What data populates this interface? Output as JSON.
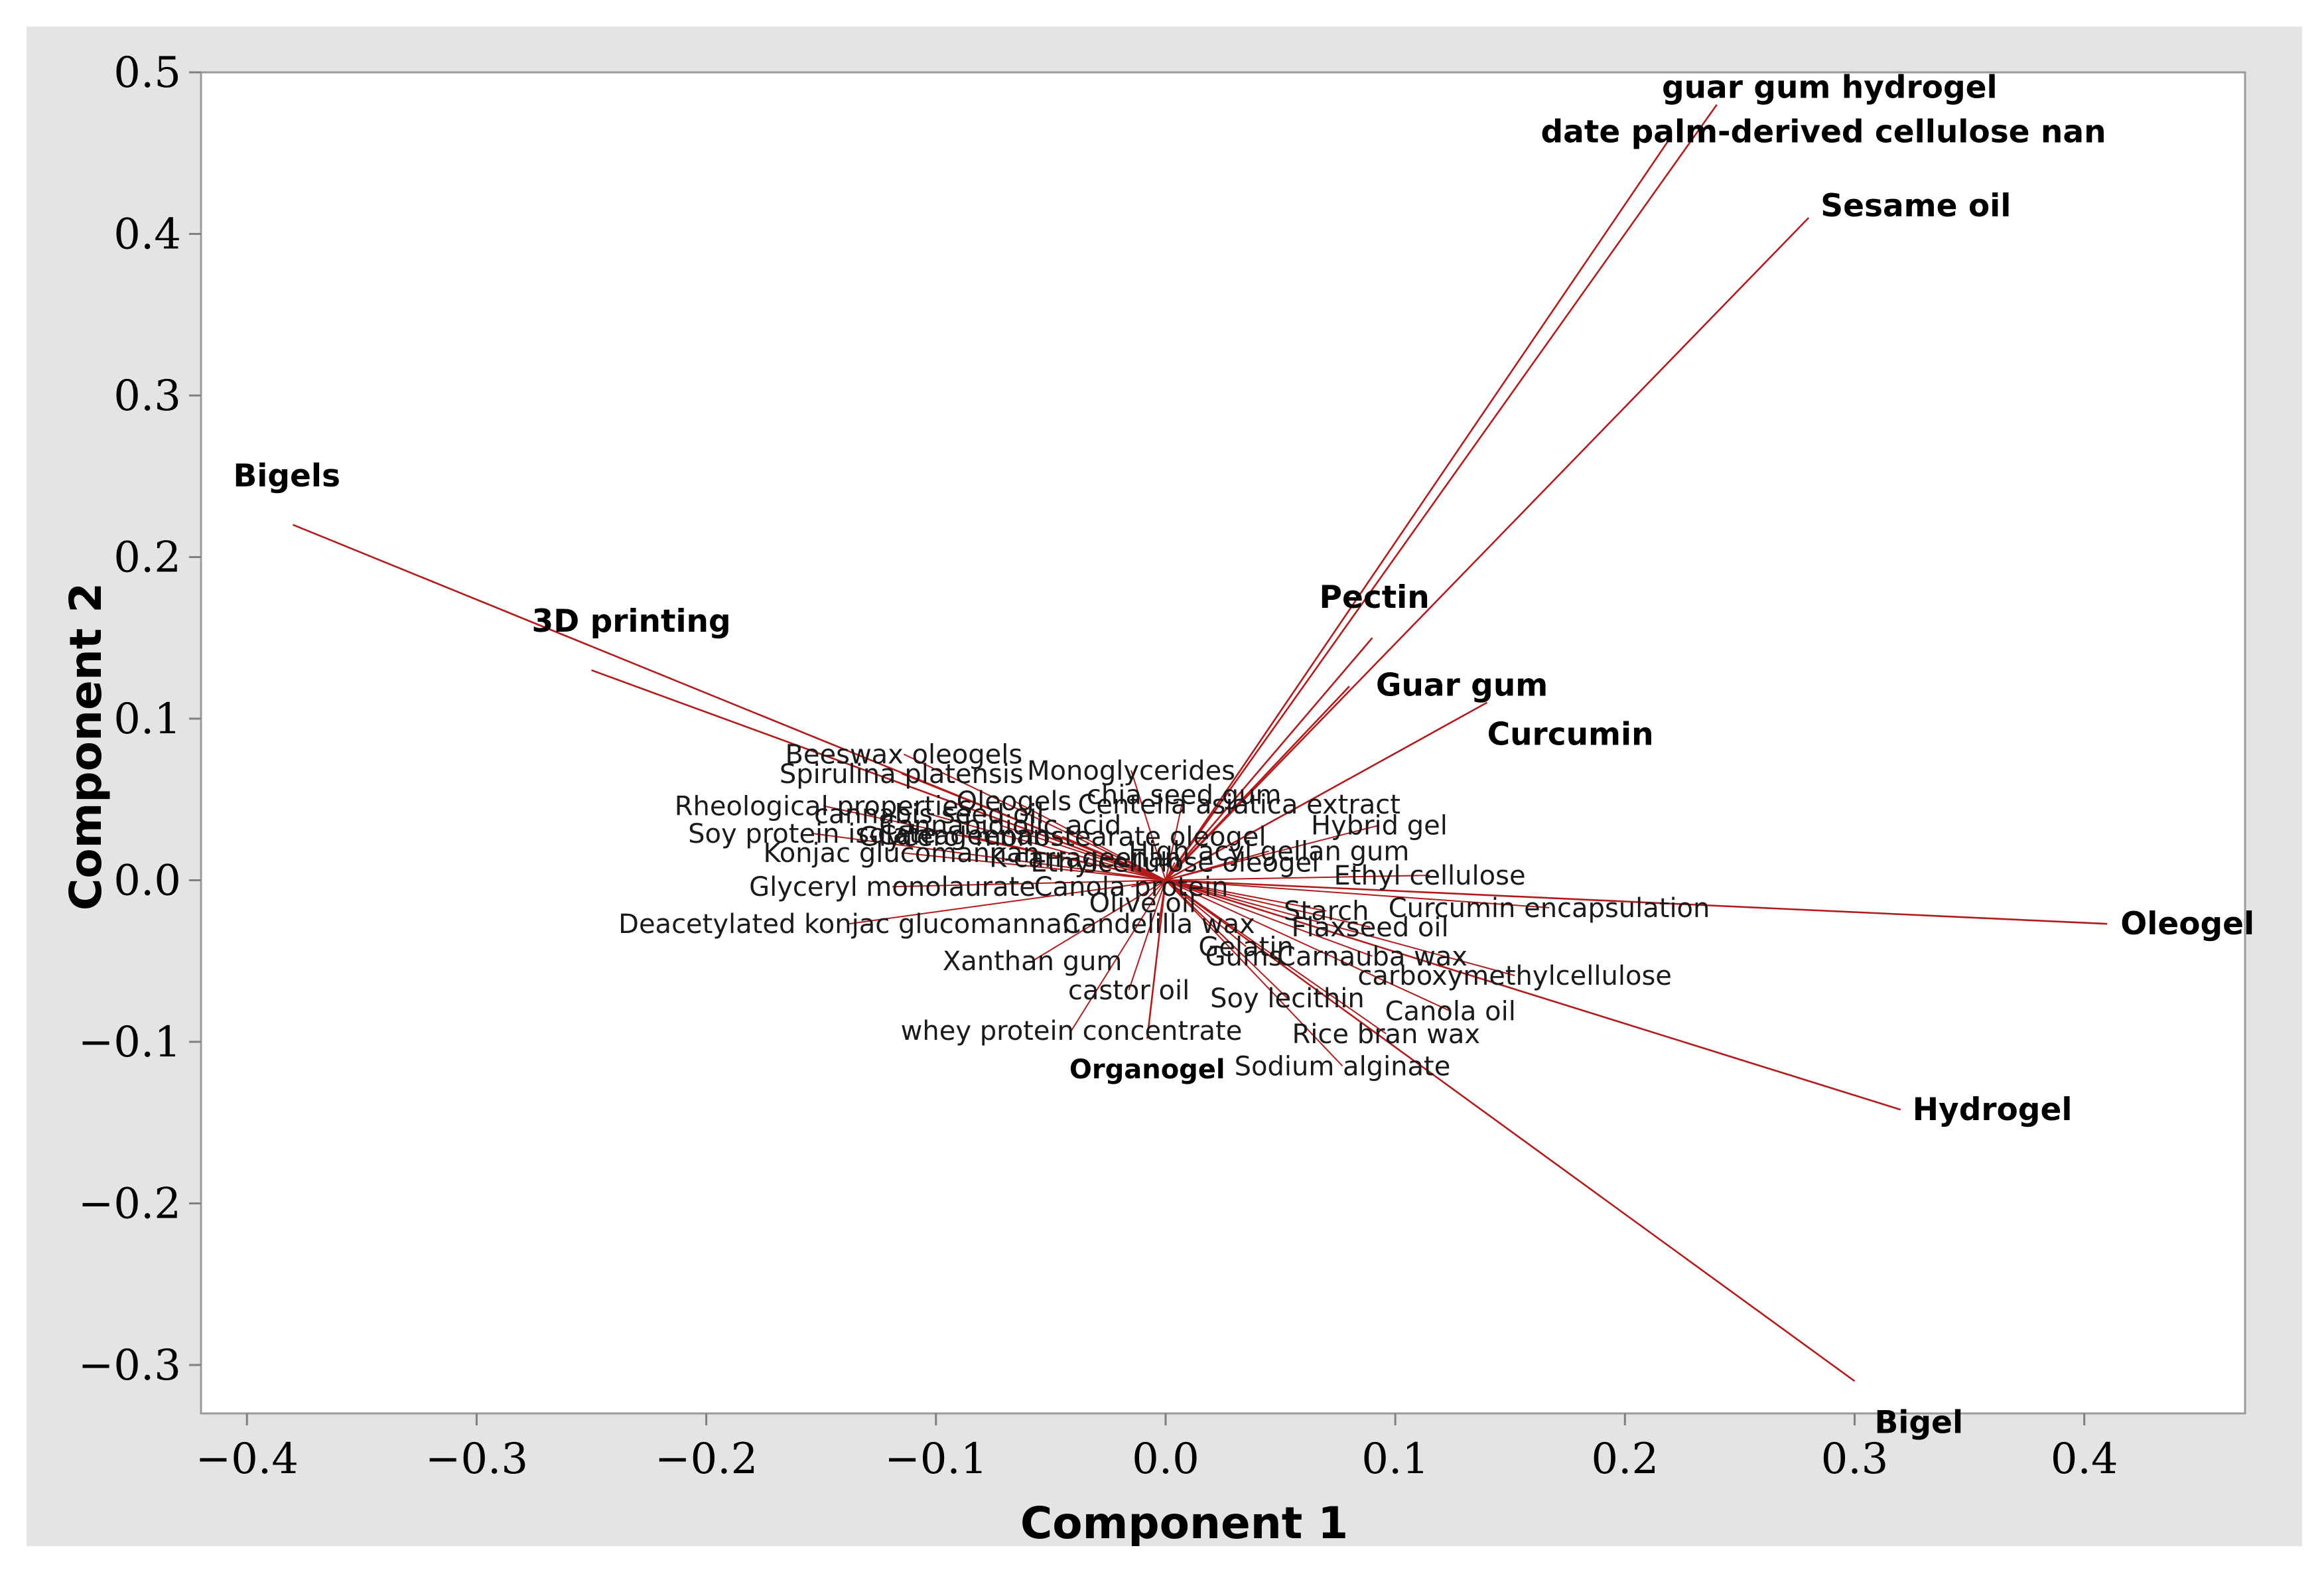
{
  "chart_data": {
    "type": "scatter",
    "subtype": "biplot-loading-vectors",
    "xlabel": "Component 1",
    "ylabel": "Component 2",
    "xlim": [
      -0.42,
      0.47
    ],
    "ylim": [
      -0.33,
      0.5
    ],
    "xticks": [
      -0.4,
      -0.3,
      -0.2,
      -0.1,
      0.0,
      0.1,
      0.2,
      0.3,
      0.4
    ],
    "yticks": [
      -0.3,
      -0.2,
      -0.1,
      0.0,
      0.1,
      0.2,
      0.3,
      0.4,
      0.5
    ],
    "xtick_labels": [
      "−0.4",
      "−0.3",
      "−0.2",
      "−0.1",
      "0.0",
      "0.1",
      "0.2",
      "0.3",
      "0.4"
    ],
    "ytick_labels": [
      "−0.3",
      "−0.2",
      "−0.1",
      "0.0",
      "0.1",
      "0.2",
      "0.3",
      "0.4",
      "0.5"
    ],
    "line_color": "#b31b1b",
    "points": [
      {
        "label": "guar gum hydrogel",
        "x": 0.24,
        "y": 0.48,
        "bold": true
      },
      {
        "label": "date palm-derived cellulose nan",
        "x": 0.22,
        "y": 0.46,
        "bold": true
      },
      {
        "label": "Sesame oil",
        "x": 0.28,
        "y": 0.41,
        "bold": true
      },
      {
        "label": "Bigels",
        "x": -0.38,
        "y": 0.22,
        "bold": true
      },
      {
        "label": "3D printing",
        "x": -0.25,
        "y": 0.13,
        "bold": true
      },
      {
        "label": "Pectin",
        "x": 0.09,
        "y": 0.15,
        "bold": true
      },
      {
        "label": "Guar gum",
        "x": 0.08,
        "y": 0.12,
        "bold": true
      },
      {
        "label": "Curcumin",
        "x": 0.14,
        "y": 0.11,
        "bold": true
      },
      {
        "label": "Oleogel",
        "x": 0.41,
        "y": -0.027,
        "bold": true
      },
      {
        "label": "Hydrogel",
        "x": 0.32,
        "y": -0.142,
        "bold": true
      },
      {
        "label": "Bigel",
        "x": 0.3,
        "y": -0.31,
        "bold": true
      },
      {
        "label": "Organogel",
        "x": -0.008,
        "y": -0.098,
        "bold": true,
        "small": true
      },
      {
        "label": "Beeswax oleogels",
        "x": -0.114,
        "y": 0.078
      },
      {
        "label": "Spirulina platensis",
        "x": -0.115,
        "y": 0.066
      },
      {
        "label": "Monoglycerides",
        "x": -0.015,
        "y": 0.068
      },
      {
        "label": "chia seed gum",
        "x": 0.008,
        "y": 0.053
      },
      {
        "label": "Rheological properties",
        "x": -0.149,
        "y": 0.046
      },
      {
        "label": "Oleogels",
        "x": -0.066,
        "y": 0.049
      },
      {
        "label": "Centella asiatica extract",
        "x": 0.032,
        "y": 0.047
      },
      {
        "label": "cannabis seed oil",
        "x": -0.103,
        "y": 0.041
      },
      {
        "label": "Cannabidiolic acid",
        "x": -0.072,
        "y": 0.034
      },
      {
        "label": "Hybrid gel",
        "x": 0.093,
        "y": 0.034
      },
      {
        "label": "Soy protein isolate",
        "x": -0.154,
        "y": 0.029
      },
      {
        "label": "Carrageenan",
        "x": -0.088,
        "y": 0.028
      },
      {
        "label": "Glycerol monostearate oleogel",
        "x": -0.045,
        "y": 0.027
      },
      {
        "label": "High acyl gellan gum",
        "x": 0.045,
        "y": 0.018
      },
      {
        "label": "Konjac glucomannan",
        "x": -0.115,
        "y": 0.017
      },
      {
        "label": "K-carrageenan",
        "x": -0.035,
        "y": 0.014
      },
      {
        "label": "Ethylcellulose oleogel",
        "x": 0.004,
        "y": 0.011
      },
      {
        "label": "Ethyl cellulose",
        "x": 0.115,
        "y": 0.003
      },
      {
        "label": "Glyceryl monolaurate",
        "x": -0.119,
        "y": -0.004
      },
      {
        "label": "Canola protein",
        "x": -0.015,
        "y": -0.004
      },
      {
        "label": "Olive oil",
        "x": -0.01,
        "y": -0.014
      },
      {
        "label": "Starch",
        "x": 0.07,
        "y": -0.019
      },
      {
        "label": "Curcumin encapsulation",
        "x": 0.167,
        "y": -0.017
      },
      {
        "label": "Flaxseed oil",
        "x": 0.089,
        "y": -0.029
      },
      {
        "label": "Deacetylated konjac glucomannan",
        "x": -0.138,
        "y": -0.027
      },
      {
        "label": "Candelilla wax",
        "x": -0.003,
        "y": -0.027
      },
      {
        "label": "Gelatin",
        "x": 0.035,
        "y": -0.041
      },
      {
        "label": "Gums",
        "x": 0.034,
        "y": -0.047
      },
      {
        "label": "Carnauba wax",
        "x": 0.09,
        "y": -0.047
      },
      {
        "label": "Xanthan gum",
        "x": -0.058,
        "y": -0.05
      },
      {
        "label": "carboxymethylcellulose",
        "x": 0.152,
        "y": -0.059
      },
      {
        "label": "castor oil",
        "x": -0.016,
        "y": -0.068
      },
      {
        "label": "Soy lecithin",
        "x": 0.053,
        "y": -0.073
      },
      {
        "label": "Canola oil",
        "x": 0.124,
        "y": -0.081
      },
      {
        "label": "whey protein concentrate",
        "x": -0.041,
        "y": -0.093
      },
      {
        "label": "Rice bran wax",
        "x": 0.096,
        "y": -0.095
      },
      {
        "label": "Sodium alginate",
        "x": 0.077,
        "y": -0.115
      }
    ]
  }
}
